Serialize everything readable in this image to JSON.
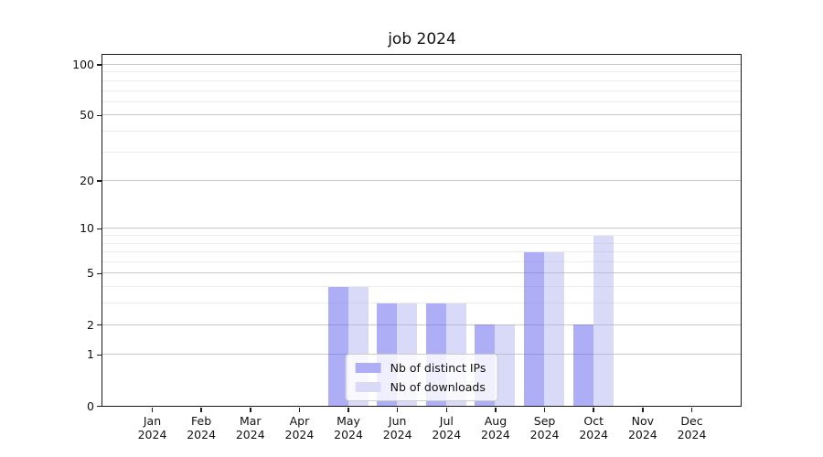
{
  "title": "job 2024",
  "chart_data": {
    "type": "bar",
    "title": "job 2024",
    "categories": [
      "Jan",
      "Feb",
      "Mar",
      "Apr",
      "May",
      "Jun",
      "Jul",
      "Aug",
      "Sep",
      "Oct",
      "Nov",
      "Dec"
    ],
    "year_label": "2024",
    "series": [
      {
        "name": "Nb of distinct IPs",
        "values": [
          0,
          0,
          0,
          0,
          4,
          3,
          3,
          2,
          7,
          2,
          0,
          0
        ],
        "color": "rgba(100,100,238,0.52)",
        "legend_color": "#aeaef6"
      },
      {
        "name": "Nb of downloads",
        "values": [
          0,
          0,
          0,
          0,
          4,
          3,
          3,
          2,
          7,
          9,
          0,
          0
        ],
        "color": "rgba(168,168,240,0.44)",
        "legend_color": "#dadaf8"
      }
    ],
    "xlabel": "",
    "ylabel": "",
    "y_scale": "log1p",
    "ylim": [
      0,
      114
    ],
    "y_major_ticks": [
      0,
      1,
      2,
      5,
      10,
      20,
      50,
      100
    ],
    "y_minor_ticks": [
      3,
      4,
      6,
      7,
      8,
      9,
      30,
      40,
      60,
      70,
      80,
      90
    ],
    "grid": true,
    "legend_position": "lower center"
  },
  "colors": {
    "grid_major": "#c9c9c9",
    "grid_minor": "#ededed",
    "spine": "#1a1a1a"
  }
}
